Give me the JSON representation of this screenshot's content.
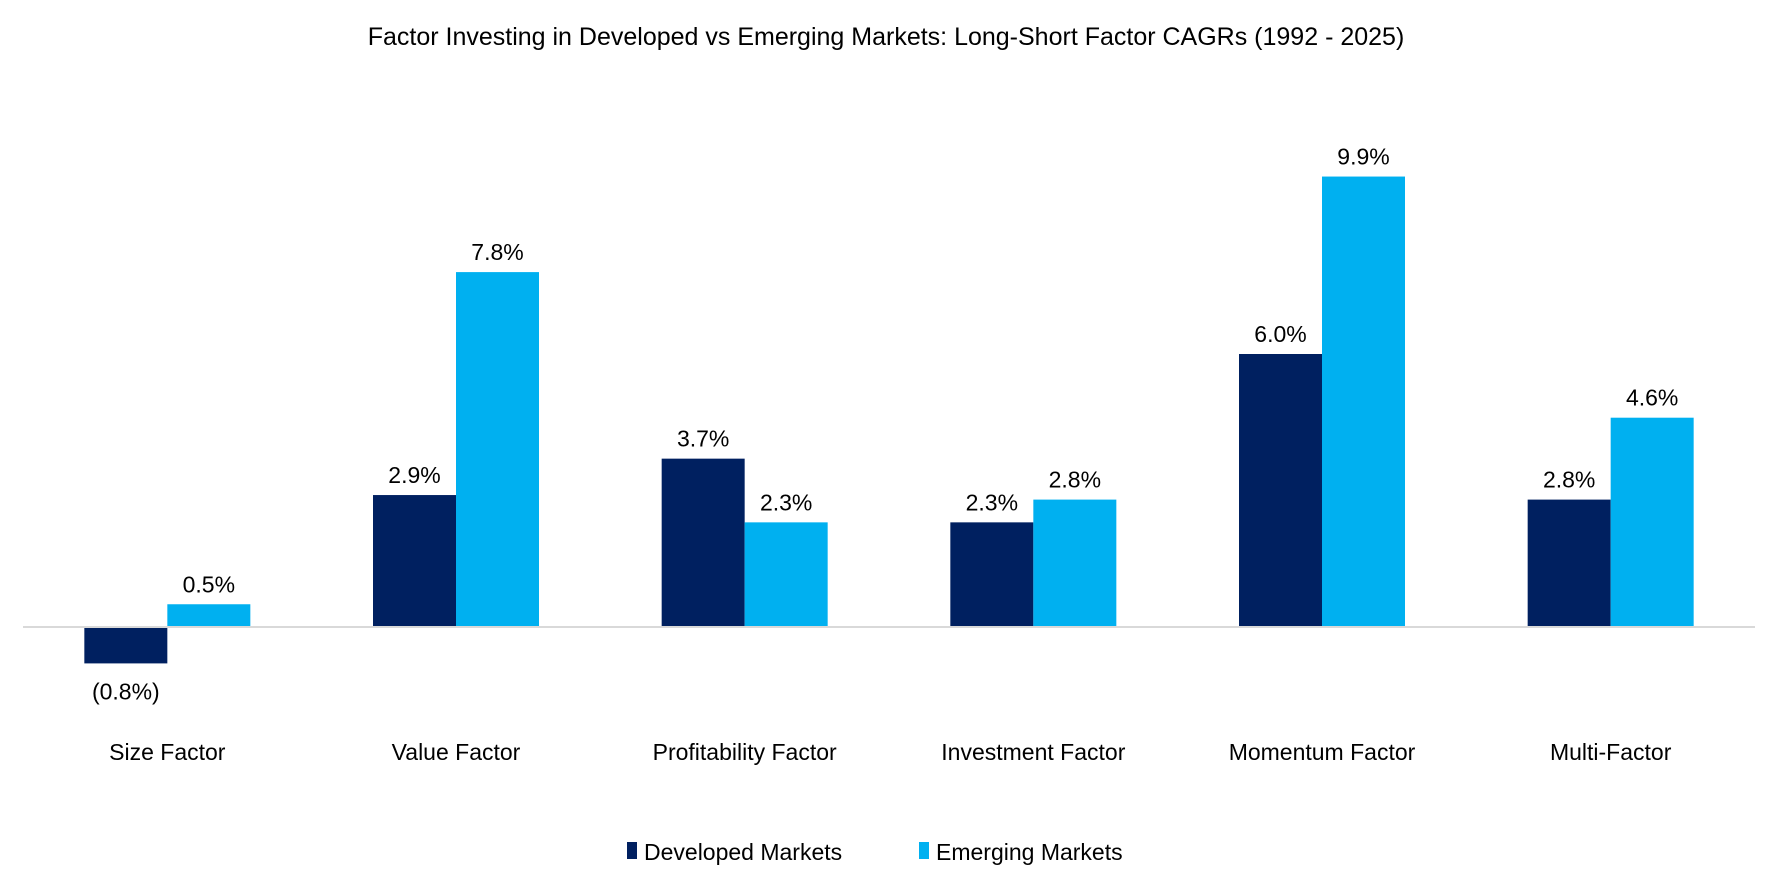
{
  "chart_data": {
    "type": "bar",
    "title": "Factor Investing in Developed vs Emerging Markets: Long-Short Factor CAGRs (1992 - 2025)",
    "categories": [
      "Size Factor",
      "Value Factor",
      "Profitability Factor",
      "Investment Factor",
      "Momentum Factor",
      "Multi-Factor"
    ],
    "series": [
      {
        "name": "Developed Markets",
        "color": "#002060",
        "values": [
          -0.8,
          2.9,
          3.7,
          2.3,
          6.0,
          2.8
        ],
        "labels": [
          "(0.8%)",
          "2.9%",
          "3.7%",
          "2.3%",
          "6.0%",
          "2.8%"
        ]
      },
      {
        "name": "Emerging Markets",
        "color": "#00B0F0",
        "values": [
          0.5,
          7.8,
          2.3,
          2.8,
          9.9,
          4.6
        ],
        "labels": [
          "0.5%",
          "7.8%",
          "2.3%",
          "2.8%",
          "9.9%",
          "4.6%"
        ]
      }
    ],
    "ylim": [
      -1.6,
      12
    ],
    "unit": "%",
    "grid": false,
    "y_axis_shown": false,
    "legend": "bottom",
    "xlabel": "",
    "ylabel": ""
  }
}
